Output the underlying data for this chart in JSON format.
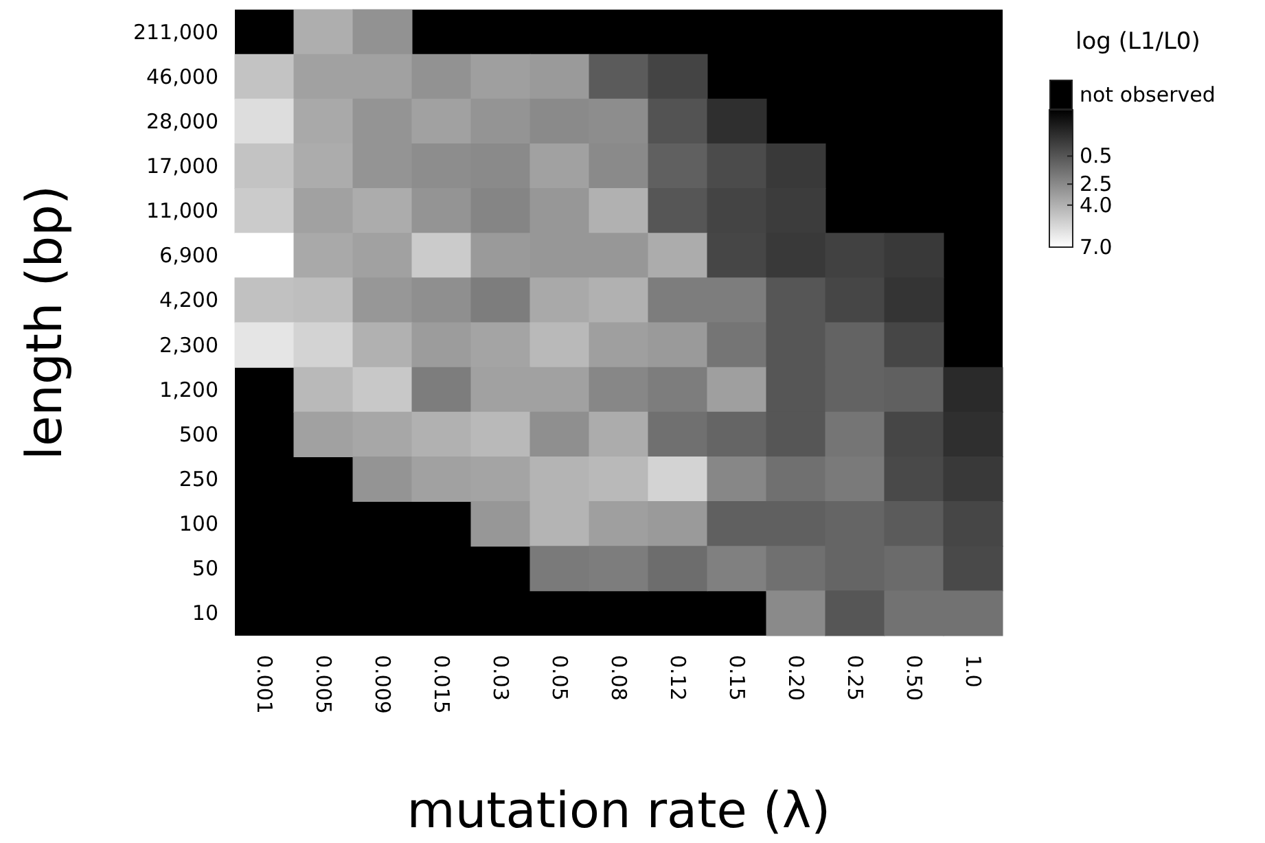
{
  "chart_data": {
    "type": "heatmap",
    "xlabel": "mutation rate (λ)",
    "ylabel": "length (bp)",
    "clabel": "log (L1/L0)",
    "categories": [
      "0.001",
      "0.005",
      "0.009",
      "0.015",
      "0.03",
      "0.05",
      "0.08",
      "0.12",
      "0.15",
      "0.20",
      "0.25",
      "0.50",
      "1.0"
    ],
    "y_categories": [
      "211,000",
      "46,000",
      "28,000",
      "17,000",
      "11,000",
      "6,900",
      "4,200",
      "2,300",
      "1,200",
      "500",
      "250",
      "100",
      "50",
      "10"
    ],
    "cells": [
      [
        null,
        3.9,
        2.8,
        null,
        null,
        null,
        null,
        null,
        null,
        null,
        null,
        null,
        null
      ],
      [
        4.7,
        3.4,
        3.4,
        2.8,
        3.3,
        3.1,
        0.7,
        -0.2,
        null,
        null,
        null,
        null,
        null
      ],
      [
        5.7,
        3.7,
        2.9,
        3.4,
        2.9,
        2.5,
        2.6,
        0.4,
        -1.0,
        null,
        null,
        null,
        null
      ],
      [
        4.7,
        3.8,
        2.9,
        2.6,
        2.5,
        3.4,
        2.5,
        0.9,
        0.1,
        -0.6,
        null,
        null,
        null
      ],
      [
        5.0,
        3.4,
        3.8,
        2.9,
        2.3,
        3.0,
        4.0,
        0.5,
        -0.2,
        -0.5,
        null,
        null,
        null
      ],
      [
        7.0,
        3.7,
        3.4,
        5.0,
        3.1,
        3.0,
        3.0,
        3.8,
        -0.1,
        -0.6,
        -0.3,
        -0.6,
        null
      ],
      [
        4.6,
        4.5,
        3.0,
        2.7,
        2.0,
        3.7,
        4.0,
        2.0,
        2.0,
        0.5,
        -0.1,
        -0.8,
        null
      ],
      [
        6.0,
        5.3,
        4.0,
        3.2,
        3.5,
        4.3,
        3.3,
        3.1,
        1.7,
        0.5,
        1.0,
        -0.1,
        null
      ],
      [
        null,
        4.3,
        4.9,
        2.0,
        3.4,
        3.4,
        2.4,
        2.0,
        3.3,
        0.5,
        1.0,
        0.9,
        -1.2
      ],
      [
        null,
        3.4,
        3.6,
        4.0,
        4.3,
        2.7,
        3.8,
        1.5,
        1.1,
        0.5,
        1.7,
        -0.1,
        -1.0
      ],
      [
        null,
        null,
        2.9,
        3.4,
        3.5,
        4.1,
        4.3,
        5.3,
        2.4,
        1.5,
        1.9,
        0.0,
        -0.6
      ],
      [
        null,
        null,
        null,
        null,
        3.0,
        4.1,
        3.3,
        3.1,
        0.9,
        0.9,
        1.1,
        0.7,
        -0.1
      ],
      [
        null,
        null,
        null,
        null,
        null,
        1.9,
        2.0,
        1.4,
        2.1,
        1.5,
        1.1,
        1.3,
        0.0
      ],
      [
        null,
        null,
        null,
        null,
        null,
        null,
        null,
        null,
        null,
        2.5,
        0.5,
        1.6,
        1.6
      ]
    ],
    "clim": [
      -2.8,
      7
    ],
    "cticks": [
      0.5,
      2.5,
      {
        "value": 4,
        "label": "4.0"
      },
      {
        "value": 7,
        "label": "7.0"
      }
    ],
    "annotations": [
      "not observed"
    ]
  }
}
